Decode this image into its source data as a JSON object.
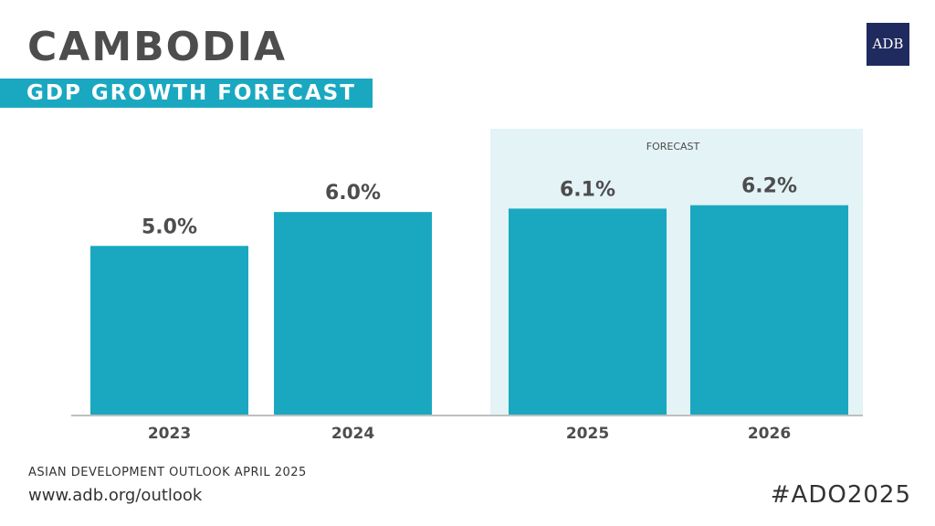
{
  "header": {
    "title": "CAMBODIA",
    "subtitle": "GDP GROWTH FORECAST",
    "logo_text": "ADB"
  },
  "footer": {
    "source": "ASIAN DEVELOPMENT OUTLOOK APRIL 2025",
    "url": "www.adb.org/outlook",
    "hashtag": "#ADO2025"
  },
  "colors": {
    "bar": "#1aa8c1",
    "forecast_band": "#e3f3f6",
    "label_text": "#4d4d4d",
    "axis": "#bfbfbf",
    "subtitle_band": "#1aa8c1",
    "logo_bg": "#1f2a5e"
  },
  "chart_data": {
    "type": "bar",
    "title": "GDP GROWTH FORECAST",
    "categories": [
      "2023",
      "2024",
      "2025",
      "2026"
    ],
    "values": [
      5.0,
      6.0,
      6.1,
      6.2
    ],
    "value_labels": [
      "5.0%",
      "6.0%",
      "6.1%",
      "6.2%"
    ],
    "forecast_categories": [
      "2025",
      "2026"
    ],
    "forecast_label": "FORECAST",
    "ylim": [
      0,
      7.0
    ],
    "xlabel": "",
    "ylabel": "",
    "grid": false
  }
}
